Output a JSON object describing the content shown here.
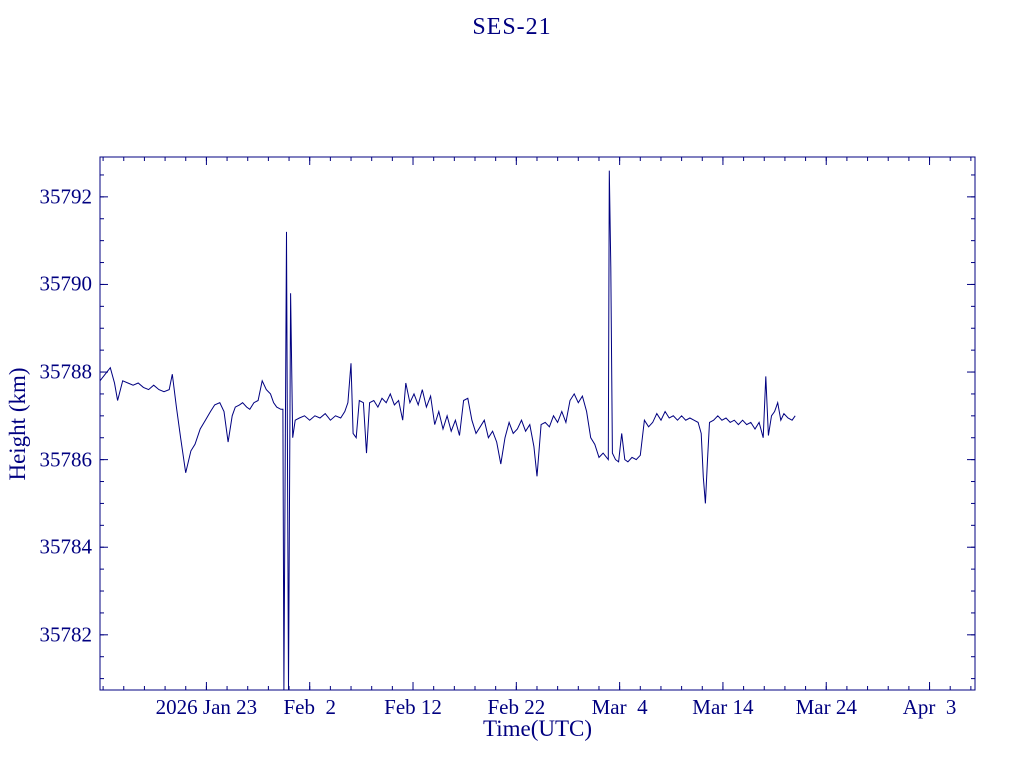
{
  "chart_data": {
    "type": "line",
    "title": "SES-21",
    "xlabel": "Time(UTC)",
    "ylabel": "Height (km)",
    "line_color": "#000080",
    "background_color": "#ffffff",
    "grid": false,
    "legend": "none",
    "x_unit": "days since 2026 Jan 23 00:00 UTC",
    "xlim": [
      -10.3,
      74.4
    ],
    "ylim": [
      35780.74,
      35792.91
    ],
    "x_minor_step": 2,
    "y_minor_step": 0.5,
    "x_ticks": [
      {
        "pos": 0,
        "label": "2026 Jan 23"
      },
      {
        "pos": 10,
        "label": "Feb  2"
      },
      {
        "pos": 20,
        "label": "Feb 12"
      },
      {
        "pos": 30,
        "label": "Feb 22"
      },
      {
        "pos": 40,
        "label": "Mar  4"
      },
      {
        "pos": 50,
        "label": "Mar 14"
      },
      {
        "pos": 60,
        "label": "Mar 24"
      },
      {
        "pos": 70,
        "label": "Apr  3"
      }
    ],
    "y_ticks": [
      {
        "pos": 35782,
        "label": "35782"
      },
      {
        "pos": 35784,
        "label": "35784"
      },
      {
        "pos": 35786,
        "label": "35786"
      },
      {
        "pos": 35788,
        "label": "35788"
      },
      {
        "pos": 35790,
        "label": "35790"
      },
      {
        "pos": 35792,
        "label": "35792"
      }
    ],
    "series": [
      {
        "name": "height",
        "points": [
          [
            -10.3,
            35787.8
          ],
          [
            -9.8,
            35787.95
          ],
          [
            -9.3,
            35788.1
          ],
          [
            -8.9,
            35787.75
          ],
          [
            -8.6,
            35787.35
          ],
          [
            -8.1,
            35787.8
          ],
          [
            -7.6,
            35787.75
          ],
          [
            -7.1,
            35787.7
          ],
          [
            -6.6,
            35787.75
          ],
          [
            -6.1,
            35787.65
          ],
          [
            -5.6,
            35787.6
          ],
          [
            -5.1,
            35787.7
          ],
          [
            -4.6,
            35787.6
          ],
          [
            -4.1,
            35787.55
          ],
          [
            -3.6,
            35787.6
          ],
          [
            -3.3,
            35787.95
          ],
          [
            -2.9,
            35787.2
          ],
          [
            -2.5,
            35786.5
          ],
          [
            -2.0,
            35785.7
          ],
          [
            -1.5,
            35786.2
          ],
          [
            -1.1,
            35786.35
          ],
          [
            -0.6,
            35786.7
          ],
          [
            -0.1,
            35786.9
          ],
          [
            0.4,
            35787.1
          ],
          [
            0.8,
            35787.25
          ],
          [
            1.3,
            35787.3
          ],
          [
            1.7,
            35787.1
          ],
          [
            2.1,
            35786.4
          ],
          [
            2.5,
            35787.0
          ],
          [
            2.8,
            35787.2
          ],
          [
            3.2,
            35787.25
          ],
          [
            3.5,
            35787.3
          ],
          [
            3.9,
            35787.2
          ],
          [
            4.2,
            35787.15
          ],
          [
            4.6,
            35787.3
          ],
          [
            5.0,
            35787.35
          ],
          [
            5.4,
            35787.8
          ],
          [
            5.8,
            35787.6
          ],
          [
            6.2,
            35787.5
          ],
          [
            6.5,
            35787.3
          ],
          [
            6.8,
            35787.2
          ],
          [
            7.2,
            35787.15
          ],
          [
            7.4,
            35787.15
          ],
          [
            7.5,
            35780.74
          ],
          [
            7.75,
            35791.2
          ],
          [
            7.95,
            35780.74
          ],
          [
            8.15,
            35789.8
          ],
          [
            8.35,
            35786.5
          ],
          [
            8.6,
            35786.9
          ],
          [
            9.0,
            35786.95
          ],
          [
            9.5,
            35787.0
          ],
          [
            10.0,
            35786.9
          ],
          [
            10.5,
            35787.0
          ],
          [
            11.0,
            35786.95
          ],
          [
            11.5,
            35787.05
          ],
          [
            12.0,
            35786.9
          ],
          [
            12.5,
            35787.0
          ],
          [
            13.0,
            35786.95
          ],
          [
            13.4,
            35787.1
          ],
          [
            13.7,
            35787.3
          ],
          [
            14.0,
            35788.2
          ],
          [
            14.2,
            35786.6
          ],
          [
            14.5,
            35786.5
          ],
          [
            14.8,
            35787.35
          ],
          [
            15.2,
            35787.3
          ],
          [
            15.5,
            35786.15
          ],
          [
            15.8,
            35787.3
          ],
          [
            16.2,
            35787.35
          ],
          [
            16.6,
            35787.2
          ],
          [
            17.0,
            35787.4
          ],
          [
            17.4,
            35787.3
          ],
          [
            17.8,
            35787.5
          ],
          [
            18.2,
            35787.25
          ],
          [
            18.6,
            35787.35
          ],
          [
            19.0,
            35786.9
          ],
          [
            19.3,
            35787.75
          ],
          [
            19.7,
            35787.3
          ],
          [
            20.1,
            35787.5
          ],
          [
            20.5,
            35787.25
          ],
          [
            20.9,
            35787.6
          ],
          [
            21.3,
            35787.2
          ],
          [
            21.7,
            35787.45
          ],
          [
            22.1,
            35786.8
          ],
          [
            22.5,
            35787.1
          ],
          [
            22.9,
            35786.7
          ],
          [
            23.3,
            35787.0
          ],
          [
            23.7,
            35786.65
          ],
          [
            24.1,
            35786.9
          ],
          [
            24.5,
            35786.55
          ],
          [
            24.9,
            35787.35
          ],
          [
            25.3,
            35787.4
          ],
          [
            25.7,
            35786.9
          ],
          [
            26.1,
            35786.6
          ],
          [
            26.5,
            35786.75
          ],
          [
            26.9,
            35786.9
          ],
          [
            27.3,
            35786.5
          ],
          [
            27.7,
            35786.65
          ],
          [
            28.1,
            35786.4
          ],
          [
            28.5,
            35785.9
          ],
          [
            28.9,
            35786.5
          ],
          [
            29.3,
            35786.85
          ],
          [
            29.7,
            35786.6
          ],
          [
            30.1,
            35786.7
          ],
          [
            30.5,
            35786.9
          ],
          [
            30.9,
            35786.65
          ],
          [
            31.3,
            35786.8
          ],
          [
            31.7,
            35786.3
          ],
          [
            32.0,
            35785.62
          ],
          [
            32.4,
            35786.8
          ],
          [
            32.8,
            35786.85
          ],
          [
            33.2,
            35786.75
          ],
          [
            33.6,
            35787.0
          ],
          [
            34.0,
            35786.85
          ],
          [
            34.4,
            35787.1
          ],
          [
            34.8,
            35786.85
          ],
          [
            35.2,
            35787.35
          ],
          [
            35.6,
            35787.5
          ],
          [
            36.0,
            35787.3
          ],
          [
            36.4,
            35787.45
          ],
          [
            36.8,
            35787.1
          ],
          [
            37.2,
            35786.5
          ],
          [
            37.6,
            35786.35
          ],
          [
            38.0,
            35786.05
          ],
          [
            38.4,
            35786.15
          ],
          [
            38.9,
            35786.0
          ],
          [
            39.0,
            35792.6
          ],
          [
            39.15,
            35790.4
          ],
          [
            39.3,
            35786.15
          ],
          [
            39.6,
            35786.0
          ],
          [
            39.9,
            35785.95
          ],
          [
            40.2,
            35786.6
          ],
          [
            40.5,
            35786.0
          ],
          [
            40.8,
            35785.95
          ],
          [
            41.2,
            35786.05
          ],
          [
            41.6,
            35786.0
          ],
          [
            42.0,
            35786.1
          ],
          [
            42.4,
            35786.9
          ],
          [
            42.8,
            35786.75
          ],
          [
            43.2,
            35786.85
          ],
          [
            43.6,
            35787.05
          ],
          [
            44.0,
            35786.9
          ],
          [
            44.4,
            35787.1
          ],
          [
            44.8,
            35786.95
          ],
          [
            45.2,
            35787.0
          ],
          [
            45.6,
            35786.9
          ],
          [
            46.0,
            35787.0
          ],
          [
            46.4,
            35786.9
          ],
          [
            46.8,
            35786.95
          ],
          [
            47.2,
            35786.9
          ],
          [
            47.6,
            35786.85
          ],
          [
            47.9,
            35786.6
          ],
          [
            48.1,
            35785.6
          ],
          [
            48.3,
            35785.0
          ],
          [
            48.5,
            35785.95
          ],
          [
            48.7,
            35786.85
          ],
          [
            49.1,
            35786.9
          ],
          [
            49.5,
            35787.0
          ],
          [
            49.9,
            35786.9
          ],
          [
            50.3,
            35786.95
          ],
          [
            50.7,
            35786.85
          ],
          [
            51.1,
            35786.9
          ],
          [
            51.5,
            35786.8
          ],
          [
            51.9,
            35786.9
          ],
          [
            52.3,
            35786.8
          ],
          [
            52.7,
            35786.85
          ],
          [
            53.1,
            35786.7
          ],
          [
            53.5,
            35786.85
          ],
          [
            53.9,
            35786.5
          ],
          [
            54.15,
            35787.9
          ],
          [
            54.4,
            35786.55
          ],
          [
            54.7,
            35787.0
          ],
          [
            55.0,
            35787.1
          ],
          [
            55.3,
            35787.3
          ],
          [
            55.6,
            35786.9
          ],
          [
            55.9,
            35787.05
          ],
          [
            56.3,
            35786.95
          ],
          [
            56.7,
            35786.9
          ],
          [
            57.0,
            35787.0
          ]
        ]
      }
    ]
  }
}
